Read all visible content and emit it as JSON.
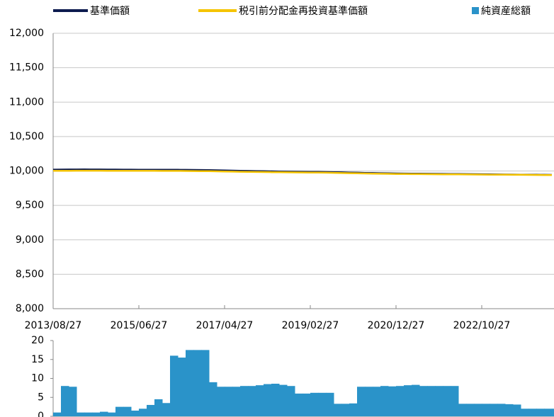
{
  "chart_data": [
    {
      "type": "line",
      "x": [
        "2013/08/27",
        "2013/10/27",
        "2013/12/27",
        "2014/02/27",
        "2014/04/27",
        "2014/06/27",
        "2014/08/27",
        "2014/10/27",
        "2014/12/27",
        "2015/02/27",
        "2015/04/27",
        "2015/06/27",
        "2015/08/27",
        "2015/10/27",
        "2015/12/27",
        "2016/02/27",
        "2016/04/27",
        "2016/06/27",
        "2016/08/27",
        "2016/10/27",
        "2016/12/27",
        "2017/02/27",
        "2017/04/27",
        "2017/06/27",
        "2017/08/27",
        "2017/10/27",
        "2017/12/27",
        "2018/02/27",
        "2018/04/27",
        "2018/06/27",
        "2018/08/27",
        "2018/10/27",
        "2018/12/27",
        "2019/02/27",
        "2019/04/27",
        "2019/06/27",
        "2019/08/27",
        "2019/10/27",
        "2019/12/27",
        "2020/02/27",
        "2020/04/27",
        "2020/06/27",
        "2020/08/27",
        "2020/10/27",
        "2020/12/27",
        "2021/02/27",
        "2021/04/27",
        "2021/06/27",
        "2021/08/27",
        "2021/10/27",
        "2021/12/27",
        "2022/02/27",
        "2022/04/27",
        "2022/06/27",
        "2022/08/27",
        "2022/10/27",
        "2022/12/27",
        "2023/02/27",
        "2023/04/27",
        "2023/06/27",
        "2023/08/27",
        "2023/10/27",
        "2023/12/27",
        "2024/02/27",
        "2024/04/27"
      ],
      "series": [
        {
          "name": "基準価額",
          "color": "#0d1b4f",
          "values": [
            10020,
            10021,
            10022,
            10022,
            10023,
            10022,
            10022,
            10021,
            10021,
            10020,
            10020,
            10019,
            10019,
            10018,
            10018,
            10017,
            10017,
            10016,
            10015,
            10014,
            10012,
            10010,
            10008,
            10005,
            10003,
            10001,
            9999,
            9997,
            9995,
            9993,
            9991,
            9990,
            9989,
            9988,
            9987,
            9985,
            9983,
            9980,
            9977,
            9975,
            9972,
            9970,
            9968,
            9966,
            9964,
            9963,
            9962,
            9961,
            9960,
            9959,
            9958,
            9957,
            9956,
            9955,
            9954,
            9953,
            9952,
            9950,
            9949,
            9948,
            9947,
            9946,
            9945,
            9944,
            9943
          ]
        },
        {
          "name": "税引前分配金再投資基準価額",
          "color": "#f5c400",
          "values": [
            10002,
            10003,
            10003,
            10004,
            10004,
            10004,
            10004,
            10003,
            10003,
            10003,
            10003,
            10002,
            10002,
            10002,
            10001,
            10001,
            10001,
            10000,
            9999,
            9998,
            9997,
            9995,
            9993,
            9991,
            9989,
            9988,
            9986,
            9985,
            9983,
            9981,
            9980,
            9979,
            9978,
            9977,
            9976,
            9975,
            9973,
            9970,
            9968,
            9966,
            9964,
            9962,
            9960,
            9959,
            9957,
            9956,
            9955,
            9955,
            9954,
            9953,
            9952,
            9951,
            9951,
            9950,
            9949,
            9948,
            9947,
            9946,
            9945,
            9944,
            9944,
            9943,
            9942,
            9941,
            9940
          ]
        }
      ],
      "xlim": [
        "2013/08/27",
        "2024/04/27"
      ],
      "xticks": [
        "2013/08/27",
        "2015/06/27",
        "2017/04/27",
        "2019/02/27",
        "2020/12/27",
        "2022/10/27"
      ],
      "ylim": [
        8000,
        12000
      ],
      "yticks": [
        {
          "value": 8000,
          "label": "8,000"
        },
        {
          "value": 8500,
          "label": "8,500"
        },
        {
          "value": 9000,
          "label": "9,000"
        },
        {
          "value": 9500,
          "label": "9,500"
        },
        {
          "value": 10000,
          "label": "10,000"
        },
        {
          "value": 10500,
          "label": "10,500"
        },
        {
          "value": 11000,
          "label": "11,000"
        },
        {
          "value": 11500,
          "label": "11,500"
        },
        {
          "value": 12000,
          "label": "12,000"
        }
      ],
      "grid": true
    },
    {
      "type": "bar",
      "x": [
        "2013/08/27",
        "2013/10/27",
        "2013/12/27",
        "2014/02/27",
        "2014/04/27",
        "2014/06/27",
        "2014/08/27",
        "2014/10/27",
        "2014/12/27",
        "2015/02/27",
        "2015/04/27",
        "2015/06/27",
        "2015/08/27",
        "2015/10/27",
        "2015/12/27",
        "2016/02/27",
        "2016/04/27",
        "2016/06/27",
        "2016/08/27",
        "2016/10/27",
        "2016/12/27",
        "2017/02/27",
        "2017/04/27",
        "2017/06/27",
        "2017/08/27",
        "2017/10/27",
        "2017/12/27",
        "2018/02/27",
        "2018/04/27",
        "2018/06/27",
        "2018/08/27",
        "2018/10/27",
        "2018/12/27",
        "2019/02/27",
        "2019/04/27",
        "2019/06/27",
        "2019/08/27",
        "2019/10/27",
        "2019/12/27",
        "2020/02/27",
        "2020/04/27",
        "2020/06/27",
        "2020/08/27",
        "2020/10/27",
        "2020/12/27",
        "2021/02/27",
        "2021/04/27",
        "2021/06/27",
        "2021/08/27",
        "2021/10/27",
        "2021/12/27",
        "2022/02/27",
        "2022/04/27",
        "2022/06/27",
        "2022/08/27",
        "2022/10/27",
        "2022/12/27",
        "2023/02/27",
        "2023/04/27",
        "2023/06/27",
        "2023/08/27",
        "2023/10/27",
        "2023/12/27",
        "2024/02/27",
        "2024/04/27"
      ],
      "series": [
        {
          "name": "純資産総額",
          "color": "#2a93c9",
          "values": [
            1,
            8,
            7.8,
            1,
            1,
            1,
            1.2,
            1,
            2.5,
            2.5,
            1.5,
            2,
            3,
            4.5,
            3.5,
            16,
            15.5,
            17.5,
            17.5,
            17.5,
            9,
            7.8,
            7.8,
            7.8,
            8,
            8,
            8.2,
            8.5,
            8.6,
            8.3,
            8,
            6,
            6,
            6.2,
            6.2,
            6.2,
            3.3,
            3.3,
            3.4,
            7.8,
            7.8,
            7.8,
            8,
            7.9,
            8,
            8.2,
            8.3,
            8,
            8,
            8,
            8,
            8,
            3.3,
            3.3,
            3.3,
            3.3,
            3.3,
            3.3,
            3.2,
            3.1,
            2,
            2,
            2,
            2,
            2
          ]
        }
      ],
      "xlim": [
        "2013/08/27",
        "2024/04/27"
      ],
      "ylim": [
        0,
        20
      ],
      "yticks": [
        0,
        5,
        10,
        15,
        20
      ]
    }
  ]
}
